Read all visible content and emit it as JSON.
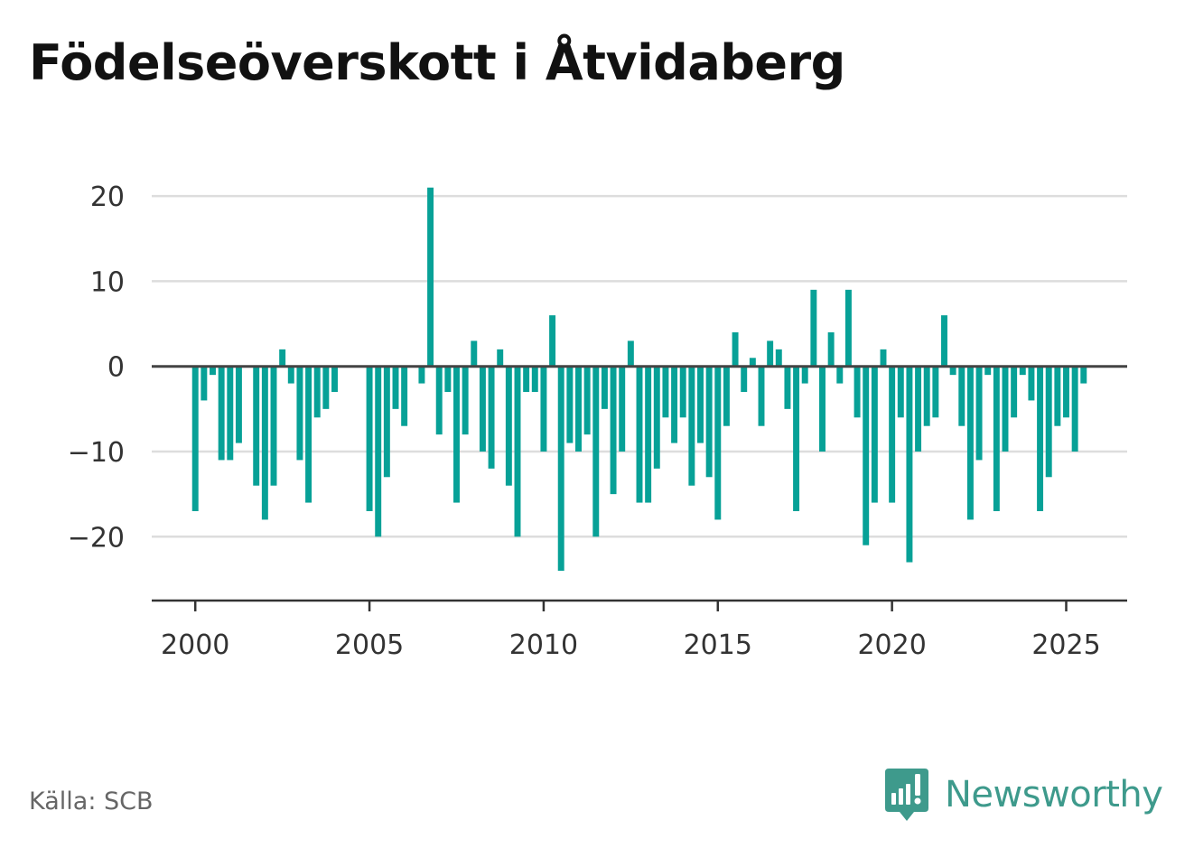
{
  "title": "Födelseöverskott i Åtvidaberg",
  "source": "Källa: SCB",
  "brand": {
    "name": "Newsworthy",
    "icon": "newsworthy-logo-icon"
  },
  "colors": {
    "bar": "#07a197",
    "grid": "#dddddd",
    "zero_line": "#444444",
    "axis": "#333333",
    "brand": "#3e9a8c"
  },
  "chart_data": {
    "type": "bar",
    "title": "Födelseöverskott i Åtvidaberg",
    "xlabel": "",
    "ylabel": "",
    "period": "quarter",
    "x_start": 2000,
    "xlim": [
      1998.75,
      2026.75
    ],
    "ylim": [
      -27.5,
      25
    ],
    "yticks": [
      -20,
      -10,
      0,
      10,
      20
    ],
    "ytick_labels": [
      "−20",
      "−10",
      "0",
      "10",
      "20"
    ],
    "xticks": [
      2000,
      2005,
      2010,
      2015,
      2020,
      2025
    ],
    "xtick_labels": [
      "2000",
      "2005",
      "2010",
      "2015",
      "2020",
      "2025"
    ],
    "grid": true,
    "legend": "none",
    "values": [
      -17,
      -4,
      -1,
      -11,
      -11,
      -9,
      0,
      -14,
      -18,
      -14,
      2,
      -2,
      -11,
      -16,
      -6,
      -5,
      -3,
      0,
      0,
      0,
      -17,
      -20,
      -13,
      -5,
      -7,
      0,
      -2,
      21,
      -8,
      -3,
      -16,
      -8,
      3,
      -10,
      -12,
      2,
      -14,
      -20,
      -3,
      -3,
      -10,
      6,
      -24,
      -9,
      -10,
      -8,
      -20,
      -5,
      -15,
      -10,
      3,
      -16,
      -16,
      -12,
      -6,
      -9,
      -6,
      -14,
      -9,
      -13,
      -18,
      -7,
      4,
      -3,
      1,
      -7,
      3,
      2,
      -5,
      -17,
      -2,
      9,
      -10,
      4,
      -2,
      9,
      -6,
      -21,
      -16,
      2,
      -16,
      -6,
      -23,
      -10,
      -7,
      -6,
      6,
      -1,
      -7,
      -18,
      -11,
      -1,
      -17,
      -10,
      -6,
      -1,
      -4,
      -17,
      -13,
      -7,
      -6,
      -10,
      -2
    ]
  }
}
